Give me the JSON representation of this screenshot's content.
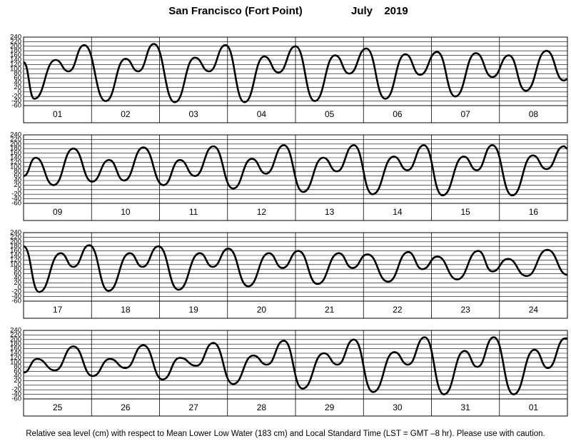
{
  "header": {
    "title": "San Francisco (Fort Point)",
    "month": "July",
    "year": "2019"
  },
  "footer": "Relative sea level (cm) with respect to Mean Lower Low Water (183 cm) and Local Standard Time (LST = GMT –8 hr). Please use with caution.",
  "chart_data": [
    {
      "type": "line",
      "categories": [
        "01",
        "02",
        "03",
        "04",
        "05",
        "06",
        "07",
        "08"
      ],
      "xlim": [
        0,
        192
      ],
      "ylim": [
        -60,
        240
      ],
      "yticks": [
        240,
        220,
        200,
        180,
        160,
        140,
        120,
        100,
        80,
        60,
        40,
        20,
        0,
        -20,
        -40,
        -60
      ],
      "grid": true,
      "color": "#000000",
      "x": [
        0,
        3.8,
        11.3,
        15.9,
        21.4,
        29,
        36,
        40.5,
        46,
        53.4,
        60.5,
        65.5,
        71.3,
        78,
        85,
        90,
        96,
        102.8,
        110,
        115,
        121,
        127.7,
        134.8,
        140,
        146,
        152.4,
        159.7,
        165.5,
        171.3,
        177.3,
        184.6,
        190.7,
        192
      ],
      "values": [
        130,
        -30,
        140,
        90,
        205,
        -40,
        145,
        90,
        210,
        -45,
        150,
        90,
        205,
        -45,
        155,
        85,
        200,
        -40,
        160,
        80,
        190,
        -30,
        165,
        75,
        175,
        -20,
        170,
        65,
        160,
        5,
        180,
        50,
        55
      ]
    },
    {
      "type": "line",
      "categories": [
        "09",
        "10",
        "11",
        "12",
        "13",
        "14",
        "15",
        "16"
      ],
      "xlim": [
        0,
        192
      ],
      "ylim": [
        -60,
        240
      ],
      "yticks": [
        240,
        220,
        200,
        180,
        160,
        140,
        120,
        100,
        80,
        60,
        40,
        20,
        0,
        -20,
        -40,
        -60
      ],
      "grid": true,
      "color": "#000000",
      "x": [
        0,
        4.3,
        10.6,
        17.6,
        24.2,
        30.2,
        35.5,
        42.3,
        49.4,
        55.2,
        60.5,
        67,
        74,
        80.6,
        85.6,
        91.9,
        98.7,
        105.8,
        110.6,
        116.6,
        123.2,
        130.7,
        135.5,
        141.3,
        147.9,
        155.4,
        160,
        165.5,
        172.5,
        179.8,
        184.6,
        190.7,
        192
      ],
      "values": [
        60,
        140,
        20,
        180,
        35,
        130,
        40,
        185,
        20,
        130,
        60,
        190,
        5,
        135,
        70,
        195,
        -10,
        140,
        80,
        195,
        -20,
        145,
        85,
        195,
        -25,
        145,
        85,
        195,
        -25,
        150,
        90,
        190,
        180
      ]
    },
    {
      "type": "line",
      "categories": [
        "17",
        "18",
        "19",
        "20",
        "21",
        "22",
        "23",
        "24"
      ],
      "xlim": [
        0,
        192
      ],
      "ylim": [
        -60,
        240
      ],
      "yticks": [
        240,
        220,
        200,
        180,
        160,
        140,
        120,
        100,
        80,
        60,
        40,
        20,
        0,
        -20,
        -40,
        -60
      ],
      "grid": true,
      "color": "#000000",
      "x": [
        0,
        5.5,
        13.1,
        17.6,
        23.2,
        30,
        37.5,
        42,
        47.6,
        54.7,
        62.2,
        66.8,
        72.3,
        79.3,
        86.6,
        91.4,
        97,
        103.8,
        111.3,
        116.1,
        121.4,
        128.7,
        135.8,
        140.8,
        146.1,
        153.1,
        160.5,
        165.5,
        171,
        177.6,
        184.9,
        192
      ],
      "values": [
        180,
        -20,
        150,
        90,
        185,
        -15,
        150,
        90,
        180,
        -10,
        150,
        90,
        170,
        5,
        150,
        85,
        160,
        15,
        150,
        85,
        145,
        25,
        155,
        80,
        135,
        35,
        160,
        70,
        125,
        50,
        165,
        55
      ]
    },
    {
      "type": "line",
      "categories": [
        "25",
        "26",
        "27",
        "28",
        "29",
        "30",
        "31",
        "01"
      ],
      "xlim": [
        0,
        192
      ],
      "ylim": [
        -60,
        240
      ],
      "yticks": [
        240,
        220,
        200,
        180,
        160,
        140,
        120,
        100,
        80,
        60,
        40,
        20,
        0,
        -20,
        -40,
        -60
      ],
      "grid": true,
      "color": "#000000",
      "x": [
        0,
        4.8,
        11.1,
        17.6,
        24.4,
        30.5,
        36,
        42.3,
        49.1,
        55.2,
        61,
        67,
        74,
        81.1,
        85.9,
        91.9,
        98.5,
        106,
        110.8,
        116.6,
        123.4,
        130.9,
        135.7,
        141.6,
        148.4,
        155.7,
        160.2,
        166,
        173,
        180.4,
        185.1,
        191.2,
        192
      ],
      "values": [
        55,
        115,
        65,
        170,
        40,
        115,
        75,
        175,
        25,
        120,
        85,
        185,
        5,
        130,
        90,
        195,
        -15,
        140,
        90,
        200,
        -30,
        145,
        90,
        210,
        -40,
        150,
        80,
        210,
        -40,
        155,
        75,
        205,
        205
      ]
    }
  ]
}
